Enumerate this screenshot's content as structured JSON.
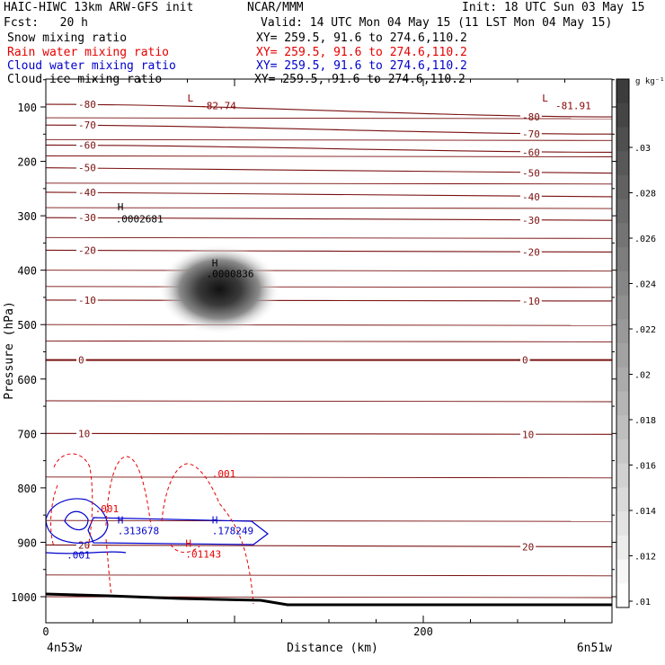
{
  "header": {
    "line1_left": "HAIC-HIWC 13km ARW-GFS init",
    "line1_mid": "NCAR/MMM",
    "line1_right": "Init: 18 UTC Sun 03 May 15",
    "line2_left": "Fcst:   20 h",
    "line2_right": "Valid: 14 UTC Mon 04 May 15 (11 LST Mon 04 May 15)",
    "fields": [
      {
        "name": "Snow mixing ratio",
        "xy": "XY= 259.5, 91.6 to 274.6,110.2",
        "color": "#000000"
      },
      {
        "name": "Rain water mixing ratio",
        "xy": "XY= 259.5, 91.6 to 274.6,110.2",
        "color": "#e60000"
      },
      {
        "name": "Cloud water mixing ratio",
        "xy": "XY= 259.5, 91.6 to 274.6,110.2",
        "color": "#0000cc"
      },
      {
        "name": "Cloud ice mixing ratio",
        "xy": "XY= 259.5, 91.6 to 274.6,110.2",
        "color": "#000000"
      }
    ]
  },
  "chart_data": {
    "type": "line",
    "xlabel": "Distance (km)",
    "ylabel": "Pressure (hPa)",
    "xlim": [
      0,
      300
    ],
    "ylim_hPa": [
      1050,
      40
    ],
    "x_ticks": [
      0,
      200
    ],
    "y_ticks": [
      100,
      200,
      300,
      400,
      500,
      600,
      700,
      800,
      900,
      1000
    ],
    "x_endpoints": [
      "4n53w",
      "6n51w"
    ],
    "colorbar": {
      "unit": "g kg⁻¹",
      "labels": [
        ".01",
        ".012",
        ".014",
        ".016",
        ".018",
        ".02",
        ".022",
        ".024",
        ".026",
        ".028",
        ".03"
      ]
    },
    "temperature_contours": [
      {
        "label": "-80",
        "p": 105
      },
      {
        "label": "-70",
        "p": 140
      },
      {
        "label": "-60",
        "p": 175
      },
      {
        "label": "-50",
        "p": 215
      },
      {
        "label": "-40",
        "p": 260
      },
      {
        "label": "-30",
        "p": 305
      },
      {
        "label": "-20",
        "p": 365
      },
      {
        "label": "-10",
        "p": 455
      },
      {
        "label": "0",
        "p": 565
      },
      {
        "label": "10",
        "p": 700
      },
      {
        "label": "20",
        "p": 905
      }
    ],
    "annotations": [
      {
        "text": "L",
        "x": 75,
        "p": 90,
        "color": "#8b0000"
      },
      {
        "text": "-82.74",
        "x": 82,
        "p": 104,
        "color": "#8b0000"
      },
      {
        "text": "L",
        "x": 263,
        "p": 90,
        "color": "#8b0000"
      },
      {
        "text": "-81.91",
        "x": 270,
        "p": 104,
        "color": "#8b0000"
      },
      {
        "text": "H",
        "x": 38,
        "p": 290,
        "color": "#000000"
      },
      {
        "text": ".0002681",
        "x": 37,
        "p": 312,
        "color": "#000000"
      },
      {
        "text": "H",
        "x": 88,
        "p": 393,
        "color": "#000000"
      },
      {
        "text": ".0000836",
        "x": 85,
        "p": 413,
        "color": "#000000"
      },
      {
        "text": ".001",
        "x": 88,
        "p": 780,
        "color": "#e60000"
      },
      {
        "text": ".001",
        "x": 26,
        "p": 845,
        "color": "#e60000"
      },
      {
        "text": "H",
        "x": 38,
        "p": 865,
        "color": "#0000cc"
      },
      {
        "text": ".313678",
        "x": 38,
        "p": 885,
        "color": "#0000cc"
      },
      {
        "text": "H",
        "x": 88,
        "p": 865,
        "color": "#0000cc"
      },
      {
        "text": ".178249",
        "x": 88,
        "p": 885,
        "color": "#0000cc"
      },
      {
        "text": "H",
        "x": 74,
        "p": 908,
        "color": "#e60000"
      },
      {
        "text": ".01143",
        "x": 74,
        "p": 928,
        "color": "#e60000"
      },
      {
        "text": ".001",
        "x": 11,
        "p": 930,
        "color": "#0000cc"
      }
    ]
  }
}
